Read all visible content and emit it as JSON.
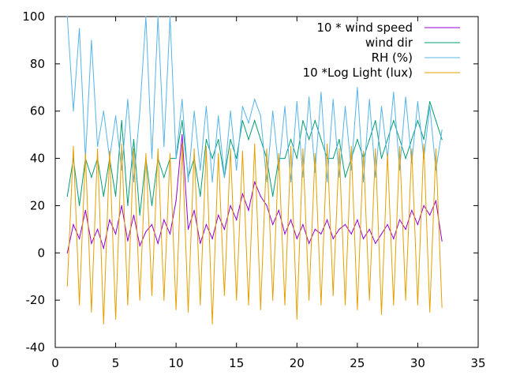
{
  "chart_data": {
    "type": "line",
    "title": "",
    "xlabel": "",
    "ylabel": "",
    "xlim": [
      0,
      35
    ],
    "ylim": [
      -40,
      100
    ],
    "x_ticks": [
      0,
      5,
      10,
      15,
      20,
      25,
      30,
      35
    ],
    "y_ticks": [
      -40,
      -20,
      0,
      20,
      40,
      60,
      80,
      100
    ],
    "x_tick_labels": [
      "0",
      "5",
      "10",
      "15",
      "20",
      "25",
      "30",
      "35"
    ],
    "y_tick_labels": [
      "-40",
      "-20",
      "0",
      "20",
      "40",
      "60",
      "80",
      "100"
    ],
    "grid": false,
    "legend_position": "top-right",
    "series": [
      {
        "name": "10 * wind speed",
        "color": "#9400d3",
        "x": [
          1.0,
          1.5,
          2.0,
          2.5,
          3.0,
          3.5,
          4.0,
          4.5,
          5.0,
          5.5,
          6.0,
          6.5,
          7.0,
          7.5,
          8.0,
          8.5,
          9.0,
          9.5,
          10.0,
          10.5,
          11.0,
          11.5,
          12.0,
          12.5,
          13.0,
          13.5,
          14.0,
          14.5,
          15.0,
          15.5,
          16.0,
          16.5,
          17.0,
          17.5,
          18.0,
          18.5,
          19.0,
          19.5,
          20.0,
          20.5,
          21.0,
          21.5,
          22.0,
          22.5,
          23.0,
          23.5,
          24.0,
          24.5,
          25.0,
          25.5,
          26.0,
          26.5,
          27.0,
          27.5,
          28.0,
          28.5,
          29.0,
          29.5,
          30.0,
          30.5,
          31.0,
          31.5,
          32.0
        ],
        "y": [
          0,
          12,
          6,
          18,
          4,
          10,
          2,
          14,
          8,
          20,
          5,
          16,
          3,
          9,
          12,
          4,
          14,
          8,
          22,
          50,
          10,
          18,
          4,
          12,
          6,
          16,
          10,
          20,
          14,
          25,
          18,
          30,
          24,
          20,
          12,
          18,
          8,
          14,
          6,
          12,
          4,
          10,
          8,
          14,
          6,
          10,
          12,
          8,
          14,
          6,
          10,
          4,
          8,
          12,
          6,
          14,
          10,
          18,
          12,
          20,
          16,
          22,
          5
        ]
      },
      {
        "name": "wind dir",
        "color": "#009e73",
        "x": [
          1.0,
          1.5,
          2.0,
          2.5,
          3.0,
          3.5,
          4.0,
          4.5,
          5.0,
          5.5,
          6.0,
          6.5,
          7.0,
          7.5,
          8.0,
          8.5,
          9.0,
          9.5,
          10.0,
          10.5,
          11.0,
          11.5,
          12.0,
          12.5,
          13.0,
          13.5,
          14.0,
          14.5,
          15.0,
          15.5,
          16.0,
          16.5,
          17.0,
          17.5,
          18.0,
          18.5,
          19.0,
          19.5,
          20.0,
          20.5,
          21.0,
          21.5,
          22.0,
          22.5,
          23.0,
          23.5,
          24.0,
          24.5,
          25.0,
          25.5,
          26.0,
          26.5,
          27.0,
          27.5,
          28.0,
          28.5,
          29.0,
          29.5,
          30.0,
          30.5,
          31.0,
          31.5,
          32.0
        ],
        "y": [
          24,
          40,
          20,
          40,
          32,
          40,
          24,
          40,
          24,
          56,
          20,
          48,
          16,
          40,
          20,
          40,
          32,
          40,
          40,
          56,
          32,
          40,
          24,
          48,
          40,
          48,
          32,
          48,
          40,
          56,
          48,
          56,
          48,
          40,
          24,
          40,
          40,
          48,
          40,
          56,
          48,
          56,
          48,
          40,
          40,
          48,
          32,
          40,
          48,
          40,
          48,
          56,
          40,
          48,
          56,
          48,
          40,
          48,
          56,
          48,
          64,
          56,
          48
        ]
      },
      {
        "name": "RH (%)",
        "color": "#56b4e9",
        "x": [
          1.0,
          1.5,
          2.0,
          2.5,
          3.0,
          3.5,
          4.0,
          4.5,
          5.0,
          5.5,
          6.0,
          6.5,
          7.0,
          7.5,
          8.0,
          8.5,
          9.0,
          9.5,
          10.0,
          10.5,
          11.0,
          11.5,
          12.0,
          12.5,
          13.0,
          13.5,
          14.0,
          14.5,
          15.0,
          15.5,
          16.0,
          16.5,
          17.0,
          17.5,
          18.0,
          18.5,
          19.0,
          19.5,
          20.0,
          20.5,
          21.0,
          21.5,
          22.0,
          22.5,
          23.0,
          23.5,
          24.0,
          24.5,
          25.0,
          25.5,
          26.0,
          26.5,
          27.0,
          27.5,
          28.0,
          28.5,
          29.0,
          29.5,
          30.0,
          30.5,
          31.0,
          31.5,
          32.0
        ],
        "y": [
          100,
          60,
          95,
          40,
          90,
          45,
          60,
          40,
          58,
          35,
          65,
          30,
          60,
          100,
          40,
          100,
          45,
          100,
          40,
          65,
          30,
          60,
          35,
          62,
          30,
          58,
          32,
          60,
          35,
          62,
          55,
          65,
          58,
          30,
          60,
          35,
          62,
          30,
          64,
          32,
          66,
          34,
          68,
          30,
          65,
          32,
          62,
          35,
          70,
          30,
          65,
          32,
          62,
          40,
          68,
          35,
          66,
          38,
          64,
          40,
          62,
          35,
          52
        ]
      },
      {
        "name": "10 *Log Light (lux)",
        "color": "#e69f00",
        "x": [
          1.0,
          1.5,
          2.0,
          2.5,
          3.0,
          3.5,
          4.0,
          4.5,
          5.0,
          5.5,
          6.0,
          6.5,
          7.0,
          7.5,
          8.0,
          8.5,
          9.0,
          9.5,
          10.0,
          10.5,
          11.0,
          11.5,
          12.0,
          12.5,
          13.0,
          13.5,
          14.0,
          14.5,
          15.0,
          15.5,
          16.0,
          16.5,
          17.0,
          17.5,
          18.0,
          18.5,
          19.0,
          19.5,
          20.0,
          20.5,
          21.0,
          21.5,
          22.0,
          22.5,
          23.0,
          23.5,
          24.0,
          24.5,
          25.0,
          25.5,
          26.0,
          26.5,
          27.0,
          27.5,
          28.0,
          28.5,
          29.0,
          29.5,
          30.0,
          30.5,
          31.0,
          31.5,
          32.0
        ],
        "y": [
          -14,
          45,
          -22,
          42,
          -25,
          44,
          -30,
          43,
          -28,
          46,
          -22,
          44,
          -20,
          42,
          -18,
          44,
          -20,
          42,
          -24,
          46,
          -25,
          44,
          -22,
          45,
          -30,
          42,
          -18,
          44,
          -20,
          43,
          -22,
          46,
          -24,
          44,
          -20,
          42,
          -22,
          45,
          -28,
          44,
          -20,
          42,
          -22,
          46,
          -18,
          44,
          -22,
          45,
          -24,
          43,
          -20,
          44,
          -26,
          42,
          -22,
          45,
          -20,
          44,
          -22,
          46,
          -25,
          44,
          -23
        ]
      }
    ]
  }
}
